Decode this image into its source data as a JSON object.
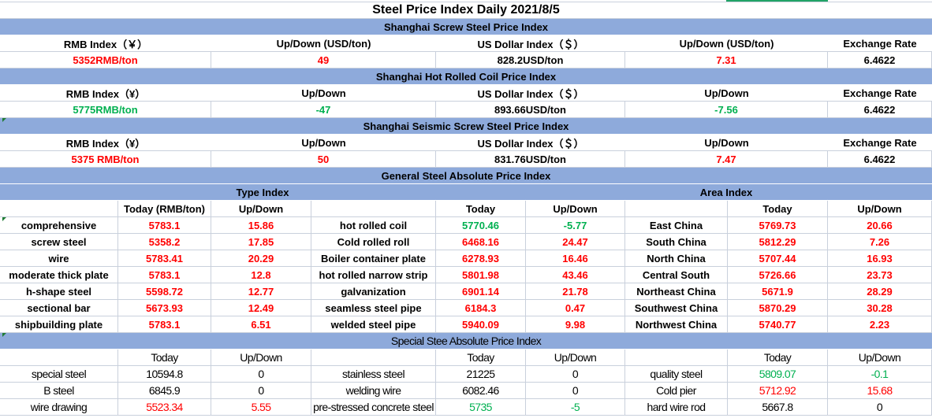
{
  "colors": {
    "red": "#ff0000",
    "green": "#00b050",
    "black": "#000000",
    "header_bg": "#8eaadb",
    "selection": "#21a366"
  },
  "title": "Steel Price Index Daily  2021/8/5",
  "top_sections": [
    {
      "title": "Shanghai Screw Steel Price Index",
      "headers": [
        "RMB Index（￥）",
        "Up/Down (USD/ton)",
        "US Dollar Index（＄）",
        "Up/Down (USD/ton)",
        "Exchange Rate"
      ],
      "values": [
        {
          "t": "5352RMB/ton",
          "c": "red"
        },
        {
          "t": "49",
          "c": "red"
        },
        {
          "t": "828.2USD/ton",
          "c": "black"
        },
        {
          "t": "7.31",
          "c": "red"
        },
        {
          "t": "6.4622",
          "c": "black"
        }
      ]
    },
    {
      "title": "Shanghai Hot Rolled Coil Price Index",
      "headers": [
        "RMB Index（¥）",
        "Up/Down",
        "US Dollar Index（＄）",
        "Up/Down",
        "Exchange Rate"
      ],
      "values": [
        {
          "t": "5775RMB/ton",
          "c": "green"
        },
        {
          "t": "-47",
          "c": "green"
        },
        {
          "t": "893.66USD/ton",
          "c": "black"
        },
        {
          "t": "-7.56",
          "c": "green"
        },
        {
          "t": "6.4622",
          "c": "black"
        }
      ]
    },
    {
      "title": "Shanghai Seismic Screw Steel Price Index",
      "headers": [
        "RMB Index（¥）",
        "Up/Down",
        "US Dollar Index（＄）",
        "Up/Down",
        "Exchange Rate"
      ],
      "values": [
        {
          "t": "5375 RMB/ton",
          "c": "red"
        },
        {
          "t": "50",
          "c": "red"
        },
        {
          "t": "831.76USD/ton",
          "c": "black"
        },
        {
          "t": "7.47",
          "c": "red"
        },
        {
          "t": "6.4622",
          "c": "black"
        }
      ]
    }
  ],
  "general": {
    "title": "General Steel Absolute Price Index",
    "type_index_label": "Type Index",
    "area_index_label": "Area Index",
    "headers": [
      "",
      "Today (RMB/ton)",
      "Up/Down",
      "",
      "Today",
      "Up/Down",
      "",
      "Today",
      "Up/Down"
    ],
    "rows": [
      [
        {
          "t": "comprehensive",
          "c": "black"
        },
        {
          "t": "5783.1",
          "c": "red"
        },
        {
          "t": "15.86",
          "c": "red"
        },
        {
          "t": "hot rolled coil",
          "c": "black"
        },
        {
          "t": "5770.46",
          "c": "green"
        },
        {
          "t": "-5.77",
          "c": "green"
        },
        {
          "t": "East China",
          "c": "black"
        },
        {
          "t": "5769.73",
          "c": "red"
        },
        {
          "t": "20.66",
          "c": "red"
        }
      ],
      [
        {
          "t": "screw steel",
          "c": "black"
        },
        {
          "t": "5358.2",
          "c": "red"
        },
        {
          "t": "17.85",
          "c": "red"
        },
        {
          "t": "Cold rolled roll",
          "c": "black"
        },
        {
          "t": "6468.16",
          "c": "red"
        },
        {
          "t": "24.47",
          "c": "red"
        },
        {
          "t": "South China",
          "c": "black"
        },
        {
          "t": "5812.29",
          "c": "red"
        },
        {
          "t": "7.26",
          "c": "red"
        }
      ],
      [
        {
          "t": "wire",
          "c": "black"
        },
        {
          "t": "5783.41",
          "c": "red"
        },
        {
          "t": "20.29",
          "c": "red"
        },
        {
          "t": "Boiler container plate",
          "c": "black"
        },
        {
          "t": "6278.93",
          "c": "red"
        },
        {
          "t": "16.46",
          "c": "red"
        },
        {
          "t": "North China",
          "c": "black"
        },
        {
          "t": "5707.44",
          "c": "red"
        },
        {
          "t": "16.93",
          "c": "red"
        }
      ],
      [
        {
          "t": "moderate thick plate",
          "c": "black"
        },
        {
          "t": "5783.1",
          "c": "red"
        },
        {
          "t": "12.8",
          "c": "red"
        },
        {
          "t": "hot rolled narrow strip",
          "c": "black"
        },
        {
          "t": "5801.98",
          "c": "red"
        },
        {
          "t": "43.46",
          "c": "red"
        },
        {
          "t": "Central South",
          "c": "black"
        },
        {
          "t": "5726.66",
          "c": "red"
        },
        {
          "t": "23.73",
          "c": "red"
        }
      ],
      [
        {
          "t": "h-shape steel",
          "c": "black"
        },
        {
          "t": "5598.72",
          "c": "red"
        },
        {
          "t": "12.77",
          "c": "red"
        },
        {
          "t": "galvanization",
          "c": "black"
        },
        {
          "t": "6901.14",
          "c": "red"
        },
        {
          "t": "21.78",
          "c": "red"
        },
        {
          "t": "Northeast China",
          "c": "black"
        },
        {
          "t": "5671.9",
          "c": "red"
        },
        {
          "t": "28.29",
          "c": "red"
        }
      ],
      [
        {
          "t": "sectional bar",
          "c": "black"
        },
        {
          "t": "5673.93",
          "c": "red"
        },
        {
          "t": "12.49",
          "c": "red"
        },
        {
          "t": "seamless steel pipe",
          "c": "black"
        },
        {
          "t": "6184.3",
          "c": "red"
        },
        {
          "t": "0.47",
          "c": "red"
        },
        {
          "t": "Southwest China",
          "c": "black"
        },
        {
          "t": "5870.29",
          "c": "red"
        },
        {
          "t": "30.28",
          "c": "red"
        }
      ],
      [
        {
          "t": "shipbuilding plate",
          "c": "black"
        },
        {
          "t": "5783.1",
          "c": "red"
        },
        {
          "t": "6.51",
          "c": "red"
        },
        {
          "t": "welded steel pipe",
          "c": "black"
        },
        {
          "t": "5940.09",
          "c": "red"
        },
        {
          "t": "9.98",
          "c": "red"
        },
        {
          "t": "Northwest China",
          "c": "black"
        },
        {
          "t": "5740.77",
          "c": "red"
        },
        {
          "t": "2.23",
          "c": "red"
        }
      ]
    ]
  },
  "special": {
    "title": "Special Stee Absolute Price Index",
    "headers": [
      "",
      "Today",
      "Up/Down",
      "",
      "Today",
      "Up/Down",
      "",
      "Today",
      "Up/Down"
    ],
    "rows": [
      [
        {
          "t": "special steel",
          "c": "black"
        },
        {
          "t": "10594.8",
          "c": "black"
        },
        {
          "t": "0",
          "c": "black"
        },
        {
          "t": "stainless steel",
          "c": "black"
        },
        {
          "t": "21225",
          "c": "black"
        },
        {
          "t": "0",
          "c": "black"
        },
        {
          "t": "quality steel",
          "c": "black"
        },
        {
          "t": "5809.07",
          "c": "green"
        },
        {
          "t": "-0.1",
          "c": "green"
        }
      ],
      [
        {
          "t": "B steel",
          "c": "black"
        },
        {
          "t": "6845.9",
          "c": "black"
        },
        {
          "t": "0",
          "c": "black"
        },
        {
          "t": "welding wire",
          "c": "black"
        },
        {
          "t": "6082.46",
          "c": "black"
        },
        {
          "t": "0",
          "c": "black"
        },
        {
          "t": "Cold pier",
          "c": "black"
        },
        {
          "t": "5712.92",
          "c": "red"
        },
        {
          "t": "15.68",
          "c": "red"
        }
      ],
      [
        {
          "t": "wire drawing",
          "c": "black"
        },
        {
          "t": "5523.34",
          "c": "red"
        },
        {
          "t": "5.55",
          "c": "red"
        },
        {
          "t": "pre-stressed concrete steel",
          "c": "black"
        },
        {
          "t": "5735",
          "c": "green"
        },
        {
          "t": "-5",
          "c": "green"
        },
        {
          "t": "hard wire rod",
          "c": "black"
        },
        {
          "t": "5667.8",
          "c": "black"
        },
        {
          "t": "0",
          "c": "black"
        }
      ]
    ]
  }
}
